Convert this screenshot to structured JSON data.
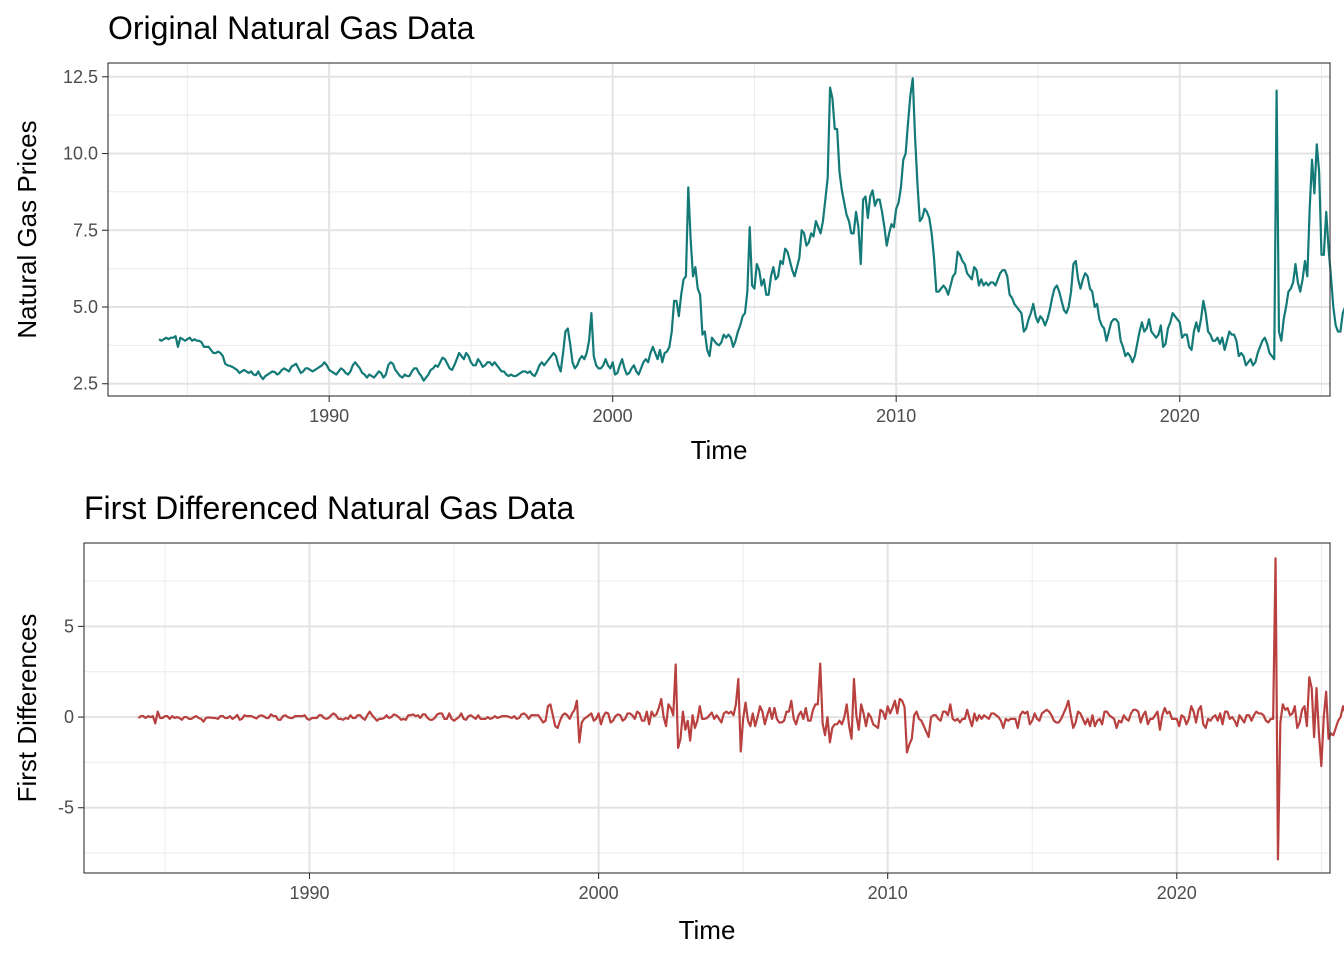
{
  "chart_data": [
    {
      "type": "line",
      "title": "Original Natural Gas Data",
      "xlabel": "Time",
      "ylabel": "Natural Gas Prices",
      "xlim": [
        1982.2,
        2025.3
      ],
      "ylim": [
        2.1,
        12.95
      ],
      "x_ticks": [
        1990,
        2000,
        2010,
        2020
      ],
      "x_tick_labels": [
        "1990",
        "2000",
        "2010",
        "2020"
      ],
      "y_ticks": [
        2.5,
        5.0,
        7.5,
        10.0,
        12.5
      ],
      "y_tick_labels": [
        "2.5",
        "5.0",
        "7.5",
        "10.0",
        "12.5"
      ],
      "grid": true,
      "series": [
        {
          "color": "#147A78",
          "start": 1984.0,
          "step": 0.0833333,
          "values": [
            3.95,
            3.9,
            3.95,
            4.0,
            3.95,
            4.0,
            4.0,
            4.05,
            3.7,
            4.0,
            3.95,
            3.9,
            3.95,
            4.0,
            3.9,
            3.95,
            3.9,
            3.9,
            3.85,
            3.7,
            3.7,
            3.7,
            3.6,
            3.5,
            3.5,
            3.55,
            3.5,
            3.4,
            3.15,
            3.1,
            3.08,
            3.05,
            3.0,
            2.95,
            2.85,
            2.9,
            2.95,
            2.9,
            2.85,
            2.9,
            2.8,
            2.78,
            2.9,
            2.75,
            2.65,
            2.75,
            2.8,
            2.85,
            2.9,
            2.88,
            2.8,
            2.85,
            2.95,
            3.0,
            2.95,
            2.9,
            3.05,
            3.1,
            3.15,
            3.0,
            2.85,
            2.9,
            3.0,
            3.0,
            2.95,
            2.9,
            2.95,
            3.0,
            3.05,
            3.1,
            3.2,
            3.1,
            2.95,
            2.9,
            2.85,
            2.8,
            2.9,
            3.0,
            2.95,
            2.85,
            2.8,
            2.9,
            3.1,
            3.2,
            3.1,
            3.0,
            2.85,
            2.8,
            2.7,
            2.8,
            2.75,
            2.7,
            2.8,
            2.9,
            2.85,
            2.7,
            2.8,
            3.1,
            3.2,
            3.15,
            2.95,
            2.85,
            2.75,
            2.7,
            2.8,
            2.75,
            2.75,
            2.9,
            3.0,
            3.0,
            2.85,
            2.75,
            2.6,
            2.7,
            2.8,
            2.95,
            3.0,
            3.1,
            3.05,
            3.2,
            3.35,
            3.3,
            3.15,
            3.0,
            2.95,
            3.1,
            3.3,
            3.5,
            3.4,
            3.3,
            3.5,
            3.4,
            3.2,
            3.1,
            3.1,
            3.3,
            3.2,
            3.05,
            3.1,
            3.2,
            3.2,
            3.1,
            3.2,
            3.1,
            3.0,
            2.9,
            2.9,
            2.8,
            2.75,
            2.8,
            2.75,
            2.75,
            2.8,
            2.85,
            2.9,
            2.9,
            2.85,
            2.9,
            2.8,
            2.75,
            2.9,
            3.1,
            3.2,
            3.1,
            3.2,
            3.3,
            3.4,
            3.5,
            3.4,
            3.1,
            2.9,
            3.5,
            4.2,
            4.3,
            3.8,
            3.2,
            3.0,
            3.1,
            3.3,
            3.4,
            3.3,
            3.5,
            3.9,
            4.8,
            3.4,
            3.1,
            3.0,
            3.0,
            3.1,
            3.3,
            3.1,
            3.0,
            3.2,
            2.8,
            2.85,
            3.1,
            3.3,
            3.0,
            2.8,
            2.85,
            3.0,
            3.1,
            2.9,
            2.8,
            3.0,
            3.2,
            3.3,
            3.2,
            3.5,
            3.7,
            3.5,
            3.3,
            3.6,
            3.2,
            3.5,
            3.55,
            3.7,
            4.2,
            5.2,
            5.2,
            4.7,
            5.4,
            5.9,
            6.0,
            8.9,
            7.2,
            6.0,
            6.3,
            5.6,
            5.4,
            4.1,
            4.2,
            3.6,
            3.4,
            4.0,
            3.9,
            3.8,
            3.75,
            3.85,
            4.1,
            4.0,
            4.1,
            4.0,
            3.7,
            3.9,
            4.2,
            4.4,
            4.7,
            4.8,
            5.5,
            7.6,
            5.7,
            5.6,
            6.4,
            6.2,
            5.7,
            5.9,
            5.4,
            5.4,
            6.0,
            6.3,
            5.9,
            6.0,
            6.5,
            6.4,
            6.9,
            6.8,
            6.5,
            6.2,
            6.0,
            6.3,
            6.6,
            7.5,
            7.4,
            7.0,
            7.1,
            7.4,
            7.3,
            7.8,
            7.6,
            7.4,
            7.8,
            8.5,
            9.2,
            12.15,
            11.8,
            10.8,
            10.8,
            9.4,
            8.8,
            8.4,
            8.0,
            7.8,
            7.4,
            7.4,
            8.1,
            7.6,
            6.4,
            8.5,
            8.6,
            7.9,
            8.6,
            8.8,
            8.3,
            8.5,
            8.5,
            8.1,
            7.6,
            7.0,
            7.4,
            7.7,
            7.6,
            8.2,
            8.4,
            8.9,
            9.8,
            10.0,
            11.0,
            11.9,
            12.45,
            10.5,
            9.0,
            7.8,
            7.9,
            8.2,
            8.1,
            7.9,
            7.4,
            6.6,
            5.5,
            5.5,
            5.6,
            5.7,
            5.6,
            5.4,
            5.7,
            6.0,
            6.1,
            6.8,
            6.7,
            6.5,
            6.4,
            6.1,
            6.0,
            5.9,
            6.3,
            6.2,
            5.7,
            5.9,
            5.7,
            5.8,
            5.7,
            5.8,
            5.8,
            5.7,
            5.9,
            6.1,
            6.2,
            6.2,
            6.0,
            5.4,
            5.3,
            5.1,
            5.0,
            4.9,
            4.8,
            4.2,
            4.3,
            4.6,
            4.8,
            5.1,
            4.7,
            4.5,
            4.7,
            4.6,
            4.4,
            4.6,
            4.9,
            5.3,
            5.6,
            5.7,
            5.5,
            5.2,
            4.9,
            4.8,
            5.0,
            5.5,
            6.4,
            6.5,
            5.9,
            5.6,
            5.9,
            6.1,
            6.0,
            5.6,
            5.5,
            5.0,
            5.1,
            4.6,
            4.4,
            4.3,
            3.9,
            4.2,
            4.5,
            4.6,
            4.6,
            4.5,
            3.9,
            3.7,
            3.4,
            3.5,
            3.4,
            3.2,
            3.4,
            3.8,
            4.2,
            4.5,
            4.2,
            4.3,
            4.6,
            4.2,
            4.1,
            4.0,
            4.1,
            4.4,
            3.7,
            3.8,
            4.3,
            4.5,
            4.8,
            4.7,
            4.6,
            4.5,
            4.0,
            4.1,
            4.1,
            3.7,
            3.6,
            4.2,
            4.5,
            4.2,
            4.6,
            5.2,
            4.8,
            4.2,
            4.1,
            3.9,
            3.9,
            4.0,
            3.8,
            4.0,
            3.6,
            3.9,
            4.2,
            4.1,
            4.1,
            3.9,
            3.4,
            3.5,
            3.4,
            3.1,
            3.2,
            3.3,
            3.1,
            3.2,
            3.5,
            3.7,
            3.9,
            4.0,
            3.8,
            3.5,
            3.4,
            3.3,
            12.05,
            4.2,
            3.9,
            4.6,
            5.0,
            5.5,
            5.6,
            5.8,
            6.4,
            5.8,
            5.5,
            5.9,
            6.5,
            6.0,
            8.2,
            9.8,
            8.7,
            10.3,
            9.4,
            6.7,
            6.7,
            8.1,
            6.9,
            6.0,
            5.0,
            4.4,
            4.2,
            4.2,
            4.8,
            5.0,
            4.8,
            5.0,
            4.2,
            4.3
          ]
        }
      ]
    },
    {
      "type": "line",
      "title": "First Differenced Natural Gas Data",
      "xlabel": "Time",
      "ylabel": "First Differences",
      "xlim": [
        1982.2,
        2025.3
      ],
      "ylim": [
        -8.6,
        9.6
      ],
      "x_ticks": [
        1990,
        2000,
        2010,
        2020
      ],
      "x_tick_labels": [
        "1990",
        "2000",
        "2010",
        "2020"
      ],
      "y_ticks": [
        -5,
        0,
        5
      ],
      "y_tick_labels": [
        "-5",
        "0",
        "5"
      ],
      "grid": true,
      "series": [
        {
          "color": "#B8413F",
          "differenced_from": 0
        }
      ]
    }
  ]
}
